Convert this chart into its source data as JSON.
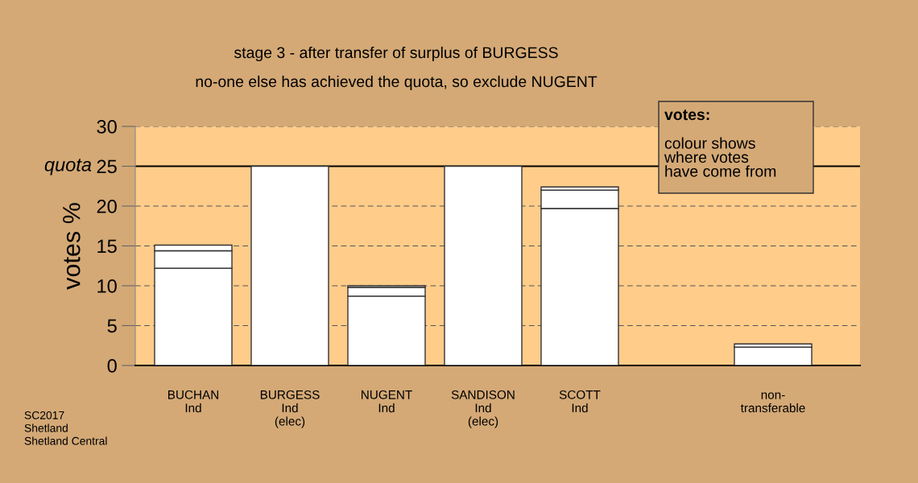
{
  "chart_data": {
    "type": "bar",
    "title": "stage 3 - after transfer of surplus of BURGESS",
    "subtitle": "no-one else has achieved the quota, so exclude NUGENT",
    "ylabel": "votes %",
    "categories": [
      "BUCHAN\nInd",
      "BURGESS\nInd\n(elec)",
      "NUGENT\nInd",
      "SANDISON\nInd\n(elec)",
      "SCOTT\nInd",
      null,
      "non-\ntransferable"
    ],
    "stacked": true,
    "series": [
      {
        "color": "#ffffff",
        "values": [
          12.2,
          25,
          8.7,
          25,
          19.7,
          null,
          2.3
        ]
      },
      {
        "color": "#ffffff",
        "values": [
          2.2,
          null,
          1.1,
          null,
          2.3,
          null,
          0.4
        ]
      },
      {
        "color": "#ffffff",
        "values": [
          0.7,
          null,
          0.2,
          null,
          0.4,
          null,
          null
        ]
      }
    ],
    "ylim": [
      0,
      30
    ],
    "yticks": [
      0,
      5,
      10,
      15,
      20,
      25,
      30
    ],
    "grid": "y",
    "ref_lines": [
      {
        "axis": "y",
        "value": 25,
        "label": "quota",
        "color": "#000000",
        "line_style": "solid"
      }
    ],
    "annotations": [
      "votes:",
      "colour shows\nwhere votes\nhave come from",
      "SC2017\nShetland\nShetland Central"
    ]
  }
}
